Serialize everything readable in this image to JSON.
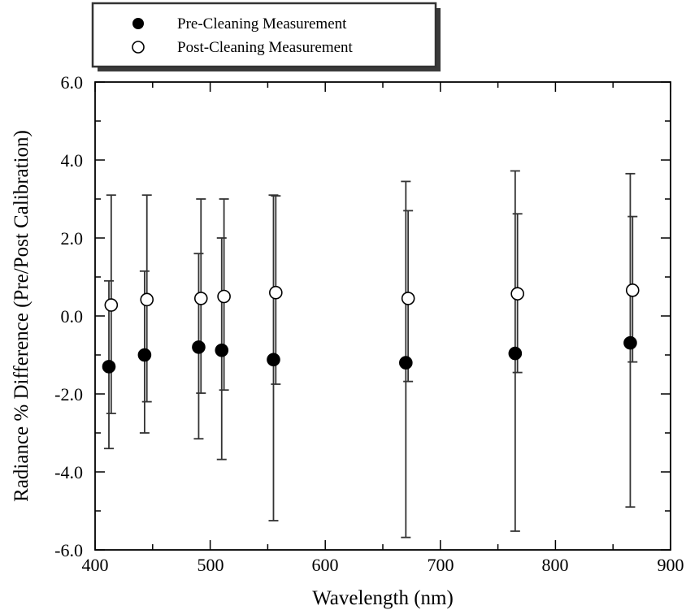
{
  "chart_data": {
    "type": "scatter",
    "title": "",
    "xlabel": "Wavelength (nm)",
    "ylabel": "Radiance % Difference (Pre/Post Calibration)",
    "xlim": [
      400,
      900
    ],
    "ylim": [
      -6.0,
      6.0
    ],
    "xticks": [
      "400",
      "500",
      "600",
      "700",
      "800",
      "900"
    ],
    "yticks": [
      "6.0",
      "4.0",
      "2.0",
      "0.0",
      "-2.0",
      "-4.0",
      "-6.0"
    ],
    "grid": false,
    "legend_position": "top-left, above plot",
    "series": [
      {
        "name": "Pre-Cleaning Measurement",
        "marker": "filled-circle",
        "x": [
          412,
          443,
          490,
          510,
          555,
          670,
          765,
          865
        ],
        "y": [
          -1.3,
          -1.0,
          -0.8,
          -0.88,
          -1.12,
          -1.2,
          -0.96,
          -0.69
        ],
        "err_low": [
          -3.4,
          -3.0,
          -3.15,
          -3.68,
          -5.25,
          -5.68,
          -5.52,
          -4.9
        ],
        "err_high": [
          0.9,
          1.15,
          1.6,
          2.0,
          3.1,
          3.45,
          3.72,
          3.65
        ]
      },
      {
        "name": "Post-Cleaning Measurement",
        "marker": "open-circle",
        "x": [
          414,
          445,
          492,
          512,
          557,
          672,
          767,
          867
        ],
        "y": [
          0.28,
          0.42,
          0.45,
          0.5,
          0.6,
          0.45,
          0.57,
          0.66
        ],
        "err_low": [
          -2.5,
          -2.2,
          -1.98,
          -1.9,
          -1.75,
          -1.68,
          -1.45,
          -1.18
        ],
        "err_high": [
          3.1,
          3.1,
          3.0,
          3.0,
          3.08,
          2.7,
          2.62,
          2.55
        ]
      }
    ]
  }
}
